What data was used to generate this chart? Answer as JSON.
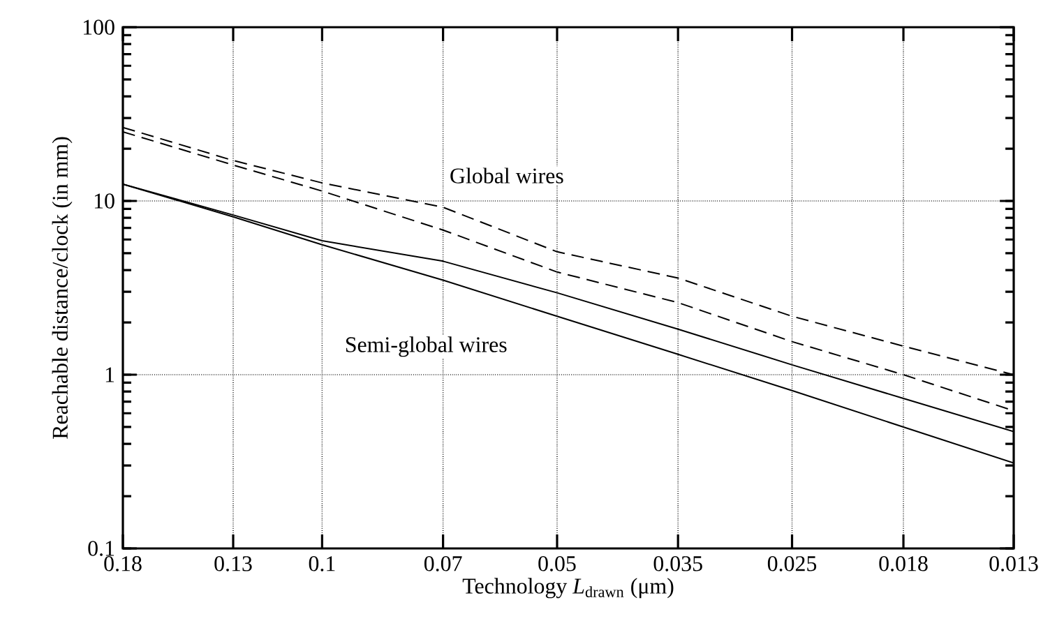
{
  "chart_data": {
    "type": "line",
    "xlabel": "Technology *L*$_{drawn}$ (μm)",
    "ylabel": "Reachable distance/clock (in mm)",
    "x": [
      0.18,
      0.13,
      0.1,
      0.07,
      0.05,
      0.035,
      0.025,
      0.018,
      0.013
    ],
    "series": [
      {
        "color": "#000000",
        "line_style": "dashed",
        "values": [
          26.5,
          17.1,
          12.7,
          9.2,
          5.1,
          3.6,
          2.17,
          1.46,
          1.0
        ]
      },
      {
        "color": "#000000",
        "line_style": "dashed",
        "values": [
          25,
          16.1,
          11.4,
          6.8,
          3.9,
          2.6,
          1.55,
          1.0,
          0.62
        ]
      },
      {
        "color": "#000000",
        "line_style": "solid",
        "values": [
          12.5,
          8.3,
          5.9,
          4.5,
          2.96,
          1.83,
          1.14,
          0.73,
          0.47
        ]
      },
      {
        "color": "#000000",
        "line_style": "solid",
        "values": [
          12.5,
          8.1,
          5.6,
          3.5,
          2.17,
          1.31,
          0.81,
          0.5,
          0.31
        ]
      }
    ],
    "annotations": [
      "Global wires",
      "Semi-global wires"
    ],
    "log": "xy",
    "xlim": [
      0.18,
      0.013
    ],
    "ylim": [
      0.1,
      100
    ],
    "xticks": [
      0.18,
      0.13,
      0.1,
      0.07,
      0.05,
      0.035,
      0.025,
      0.018,
      0.013
    ],
    "yticks": [
      0.1,
      1,
      10,
      100
    ],
    "grid": true,
    "marker": "none"
  }
}
